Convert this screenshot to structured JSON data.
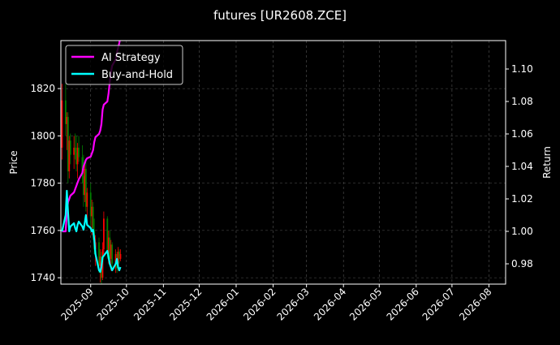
{
  "chart_data": {
    "type": "line",
    "title": "futures [UR2608.ZCE]",
    "ylabel": "Price",
    "y2label": "Return",
    "xlim": [
      "2025-08-07",
      "2026-08-15"
    ],
    "ylim": [
      1737.3,
      1840.3
    ],
    "y2lim": [
      0.9675,
      1.1175
    ],
    "grid": true,
    "legend_placement": "top-left",
    "x_ticks": [
      "2025-09",
      "2025-10",
      "2025-11",
      "2025-12",
      "2026-01",
      "2026-02",
      "2026-03",
      "2026-04",
      "2026-05",
      "2026-06",
      "2026-07",
      "2026-08"
    ],
    "y_ticks": [
      1740,
      1760,
      1780,
      1800,
      1820
    ],
    "y2_ticks": [
      "0.98",
      "1.00",
      "1.02",
      "1.04",
      "1.06",
      "1.08",
      "1.10"
    ],
    "colors": {
      "up": "#ff0000",
      "down": "#008000",
      "strategy": "#ff00ff",
      "buy_hold": "#00ffff"
    },
    "dates": [
      "2025-08-08",
      "2025-08-11",
      "2025-08-12",
      "2025-08-13",
      "2025-08-14",
      "2025-08-15",
      "2025-08-18",
      "2025-08-19",
      "2025-08-20",
      "2025-08-21",
      "2025-08-22",
      "2025-08-25",
      "2025-08-26",
      "2025-08-27",
      "2025-08-28",
      "2025-08-29",
      "2025-09-01",
      "2025-09-02",
      "2025-09-03",
      "2025-09-04",
      "2025-09-05",
      "2025-09-08",
      "2025-09-09",
      "2025-09-10",
      "2025-09-11",
      "2025-09-12",
      "2025-09-15",
      "2025-09-16",
      "2025-09-17",
      "2025-09-18",
      "2025-09-19",
      "2025-09-22",
      "2025-09-23",
      "2025-09-24",
      "2025-09-25",
      "2025-09-26"
    ],
    "ohlc": [
      [
        1795,
        1822,
        1790,
        1815
      ],
      [
        1815,
        1822,
        1800,
        1805
      ],
      [
        1805,
        1810,
        1794,
        1808
      ],
      [
        1808,
        1810,
        1780,
        1785
      ],
      [
        1785,
        1800,
        1782,
        1798
      ],
      [
        1798,
        1801,
        1788,
        1792
      ],
      [
        1792,
        1800,
        1786,
        1795
      ],
      [
        1795,
        1801,
        1790,
        1793
      ],
      [
        1793,
        1800,
        1785,
        1788
      ],
      [
        1788,
        1797,
        1782,
        1795
      ],
      [
        1795,
        1800,
        1789,
        1791
      ],
      [
        1791,
        1796,
        1780,
        1783
      ],
      [
        1783,
        1792,
        1770,
        1775
      ],
      [
        1775,
        1788,
        1772,
        1786
      ],
      [
        1786,
        1790,
        1768,
        1770
      ],
      [
        1770,
        1778,
        1764,
        1776
      ],
      [
        1776,
        1780,
        1762,
        1766
      ],
      [
        1766,
        1773,
        1758,
        1770
      ],
      [
        1770,
        1772,
        1756,
        1760
      ],
      [
        1760,
        1765,
        1750,
        1752
      ],
      [
        1752,
        1758,
        1745,
        1755
      ],
      [
        1755,
        1757,
        1742,
        1745
      ],
      [
        1745,
        1752,
        1738,
        1749
      ],
      [
        1749,
        1751,
        1737,
        1740
      ],
      [
        1740,
        1755,
        1739,
        1752
      ],
      [
        1752,
        1768,
        1750,
        1765
      ],
      [
        1765,
        1766,
        1748,
        1750
      ],
      [
        1750,
        1760,
        1746,
        1757
      ],
      [
        1757,
        1760,
        1745,
        1748
      ],
      [
        1748,
        1756,
        1743,
        1754
      ],
      [
        1754,
        1755,
        1744,
        1746
      ],
      [
        1746,
        1752,
        1742,
        1750
      ],
      [
        1750,
        1751,
        1742,
        1744
      ],
      [
        1744,
        1753,
        1743,
        1751
      ],
      [
        1751,
        1752,
        1746,
        1748
      ],
      [
        1748,
        1752,
        1747,
        1750
      ]
    ],
    "series": [
      {
        "name": "AI Strategy",
        "values": [
          1.0,
          1.0,
          1.012,
          1.018,
          1.02,
          1.022,
          1.024,
          1.026,
          1.028,
          1.03,
          1.032,
          1.036,
          1.04,
          1.042,
          1.044,
          1.045,
          1.046,
          1.048,
          1.05,
          1.055,
          1.058,
          1.06,
          1.062,
          1.066,
          1.075,
          1.078,
          1.08,
          1.085,
          1.092,
          1.098,
          1.102,
          1.106,
          1.11,
          1.113,
          1.116,
          1.12
        ]
      },
      {
        "name": "Buy-and-Hold",
        "values": [
          1.0,
          1.01,
          1.025,
          1.012,
          1.0,
          1.003,
          1.005,
          1.002,
          1.0,
          1.004,
          1.006,
          1.003,
          1.001,
          1.005,
          1.01,
          1.004,
          1.002,
          1.0,
          1.001,
          0.995,
          0.986,
          0.976,
          0.975,
          0.978,
          0.984,
          0.985,
          0.988,
          0.984,
          0.98,
          0.978,
          0.976,
          0.98,
          0.983,
          0.978,
          0.976,
          0.978
        ]
      }
    ]
  }
}
